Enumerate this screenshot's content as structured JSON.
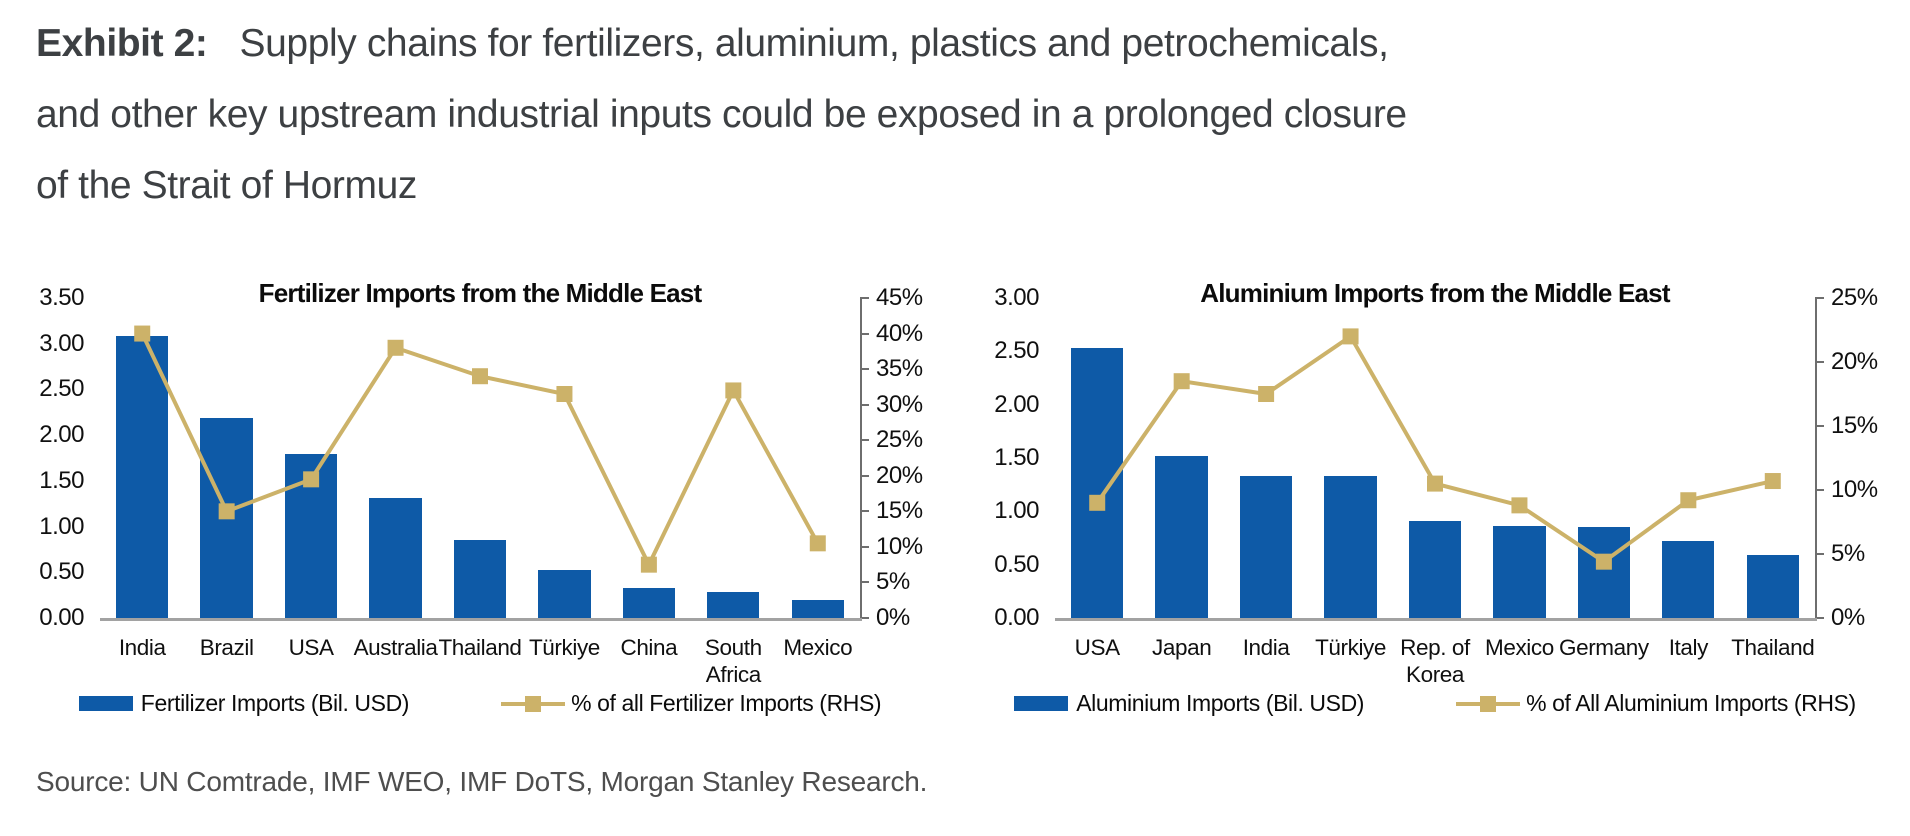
{
  "header": {
    "exhibit_label": "Exhibit 2:",
    "title_line1": "Supply chains for fertilizers, aluminium, plastics and petrochemicals,",
    "title_line2": "and other key upstream industrial inputs could be exposed in a prolonged closure",
    "title_line3": "of the Strait of Hormuz"
  },
  "source": "Source: UN Comtrade, IMF WEO, IMF DoTS, Morgan Stanley Research.",
  "colors": {
    "bar_blue": "#0e5aa7",
    "line_gold": "#ccb269",
    "axis_gray": "#a2a2a2",
    "axis_line": "#6e6e6e",
    "text_dark": "#3d4043"
  },
  "chart_data": [
    {
      "type": "bar",
      "title": "Fertilizer Imports from the Middle East",
      "categories": [
        "India",
        "Brazil",
        "USA",
        "Australia",
        "Thailand",
        "Türkiye",
        "China",
        "South\nAfrica",
        "Mexico"
      ],
      "series": [
        {
          "name": "Fertilizer Imports (Bil. USD)",
          "type": "bar",
          "axis": "left",
          "values": [
            3.08,
            2.19,
            1.79,
            1.31,
            0.85,
            0.53,
            0.33,
            0.28,
            0.2
          ]
        },
        {
          "name": "% of all Fertilizer Imports (RHS)",
          "type": "line",
          "axis": "right",
          "values": [
            40,
            15,
            19.5,
            38,
            34,
            31.5,
            7.5,
            32,
            10.5
          ]
        }
      ],
      "left_axis": {
        "min": 0,
        "max": 3.5,
        "step": 0.5,
        "labels": [
          "0.00",
          "0.50",
          "1.00",
          "1.50",
          "2.00",
          "2.50",
          "3.00",
          "3.50"
        ]
      },
      "right_axis": {
        "min": 0,
        "max": 45,
        "step": 5,
        "labels": [
          "0%",
          "5%",
          "10%",
          "15%",
          "20%",
          "25%",
          "30%",
          "35%",
          "40%",
          "45%"
        ]
      },
      "grid": "off",
      "legend_position": "bottom"
    },
    {
      "type": "bar",
      "title": "Aluminium Imports from the Middle East",
      "categories": [
        "USA",
        "Japan",
        "India",
        "Türkiye",
        "Rep. of\nKorea",
        "Mexico",
        "Germany",
        "Italy",
        "Thailand"
      ],
      "series": [
        {
          "name": "Aluminium Imports (Bil. USD)",
          "type": "bar",
          "axis": "left",
          "values": [
            2.53,
            1.52,
            1.33,
            1.33,
            0.91,
            0.86,
            0.85,
            0.72,
            0.59
          ]
        },
        {
          "name": "% of All Aluminium Imports (RHS)",
          "type": "line",
          "axis": "right",
          "values": [
            9,
            18.5,
            17.5,
            22,
            10.5,
            8.8,
            4.4,
            9.2,
            10.7
          ]
        }
      ],
      "left_axis": {
        "min": 0,
        "max": 3.0,
        "step": 0.5,
        "labels": [
          "0.00",
          "0.50",
          "1.00",
          "1.50",
          "2.00",
          "2.50",
          "3.00"
        ]
      },
      "right_axis": {
        "min": 0,
        "max": 25,
        "step": 5,
        "labels": [
          "0%",
          "5%",
          "10%",
          "15%",
          "20%",
          "25%"
        ]
      },
      "grid": "off",
      "legend_position": "bottom"
    }
  ]
}
